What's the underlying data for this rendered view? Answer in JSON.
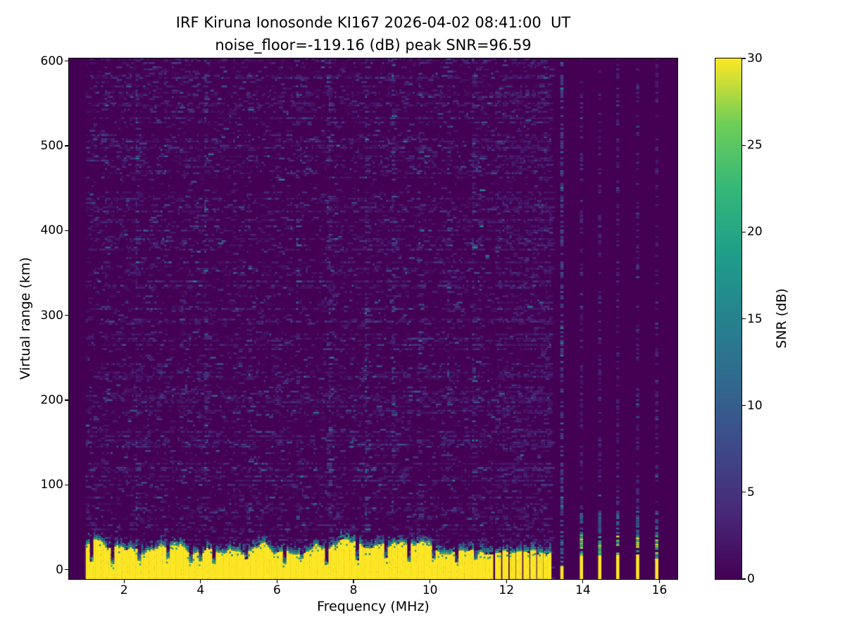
{
  "chart_data": {
    "type": "heatmap",
    "title": "IRF Kiruna Ionosonde KI167 2026-04-02 08:41:00  UT",
    "subtitle": "noise_floor=-119.16 (dB) peak SNR=96.59",
    "station": "IRF Kiruna Ionosonde KI167",
    "timestamp_ut": "2026-04-02 08:41:00 UT",
    "noise_floor_db": -119.16,
    "peak_snr_db": 96.59,
    "xlabel": "Frequency (MHz)",
    "ylabel": "Virtual range (km)",
    "colorbar_label": "SNR (dB)",
    "xlim": [
      0.56,
      16.47
    ],
    "ylim": [
      -11,
      603
    ],
    "clim": [
      0,
      30
    ],
    "xticks": [
      2,
      4,
      6,
      8,
      10,
      12,
      14,
      16
    ],
    "yticks": [
      0,
      100,
      200,
      300,
      400,
      500,
      600
    ],
    "colorbar_ticks": [
      0,
      5,
      10,
      15,
      20,
      25,
      30
    ],
    "grid": false,
    "colormap": "viridis",
    "colormap_anchors": [
      "#440154",
      "#482878",
      "#3e4989",
      "#31688e",
      "#26828e",
      "#1f9e89",
      "#35b779",
      "#6ece58",
      "#fde725"
    ],
    "content": {
      "data_start_mhz": 1.0,
      "continuous_sweep_end_mhz": 11.62,
      "ground_echo_top_km_mean": 27,
      "ground_echo_fringe_km": 10,
      "dense_stripes_mhz": [
        11.76,
        11.95,
        12.14,
        12.31,
        12.5,
        12.68,
        12.86,
        13.05
      ],
      "sparse_stripes_mhz": [
        13.45,
        13.96,
        14.44,
        14.91,
        15.43,
        15.93
      ],
      "weak_stripe_mhz": 13.45,
      "stripe_width_mhz": {
        "dense": 0.11,
        "dense_last": 0.16,
        "sparse": 0.085
      },
      "rfi_streaks_mhz": [
        1.5,
        2.3,
        3.05,
        4.1,
        5.25,
        6.5,
        7.33,
        8.3,
        9.0,
        9.7,
        10.45,
        11.1
      ],
      "notches": [
        {
          "f": 1.15,
          "top": 8
        },
        {
          "f": 1.7,
          "top": 5
        },
        {
          "f": 2.35,
          "top": 10
        },
        {
          "f": 3.1,
          "top": 12
        },
        {
          "f": 3.7,
          "top": 7
        },
        {
          "f": 3.95,
          "top": 9
        },
        {
          "f": 4.3,
          "top": 6
        },
        {
          "f": 5.15,
          "top": 11
        },
        {
          "f": 6.15,
          "top": 6
        },
        {
          "f": 6.6,
          "top": 12
        },
        {
          "f": 7.27,
          "top": 5
        },
        {
          "f": 8.05,
          "top": 10
        },
        {
          "f": 8.8,
          "top": 13
        },
        {
          "f": 9.4,
          "top": 9
        },
        {
          "f": 10.1,
          "top": 12
        },
        {
          "f": 10.7,
          "top": 8
        },
        {
          "f": 11.2,
          "top": 11
        }
      ],
      "seed": 1167
    }
  }
}
